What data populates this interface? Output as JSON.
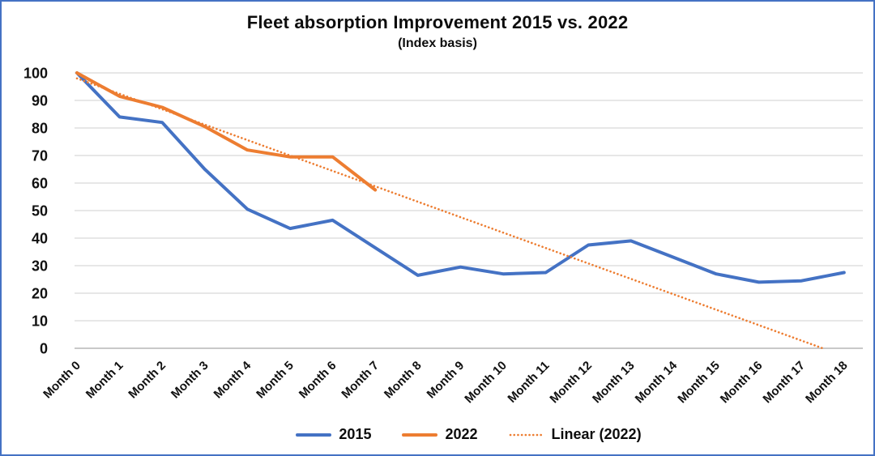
{
  "header": {
    "title": "Fleet absorption Improvement 2015 vs. 2022",
    "subtitle": "(Index basis)"
  },
  "chart_data": {
    "type": "line",
    "title": "Fleet absorption Improvement 2015 vs. 2022",
    "subtitle": "(Index basis)",
    "xlabel": "",
    "ylabel": "",
    "ylim": [
      0,
      100
    ],
    "yticks": [
      0,
      10,
      20,
      30,
      40,
      50,
      60,
      70,
      80,
      90,
      100
    ],
    "grid": true,
    "legend_position": "bottom",
    "categories": [
      "Month 0",
      "Month 1",
      "Month 2",
      "Month 3",
      "Month 4",
      "Month 5",
      "Month 6",
      "Month 7",
      "Month 8",
      "Month 9",
      "Month 10",
      "Month 11",
      "Month 12",
      "Month 13",
      "Month 14",
      "Month 15",
      "Month 16",
      "Month 17",
      "Month 18"
    ],
    "series": [
      {
        "name": "2015",
        "color": "#4472C4",
        "style": "solid",
        "values": [
          100,
          84,
          82,
          65,
          50.5,
          43.5,
          46.5,
          36.5,
          26.5,
          29.5,
          27,
          27.5,
          37.5,
          39,
          33,
          27,
          24,
          24.5,
          27.5
        ]
      },
      {
        "name": "2022",
        "color": "#ED7D31",
        "style": "solid",
        "values": [
          100,
          91.5,
          87.5,
          80.5,
          72,
          69.5,
          69.5,
          57.5,
          null,
          null,
          null,
          null,
          null,
          null,
          null,
          null,
          null,
          null,
          null
        ]
      }
    ],
    "trendline": {
      "name": "Linear (2022)",
      "color": "#ED7D31",
      "style": "dotted",
      "start_month": 0,
      "start_value": 98,
      "end_month": 17.5,
      "end_value": 0
    }
  },
  "colors": {
    "frame_border": "#4472C4",
    "gridline": "#E7E7E7",
    "axis_line": "#C9C9C9",
    "text": "#111111"
  }
}
